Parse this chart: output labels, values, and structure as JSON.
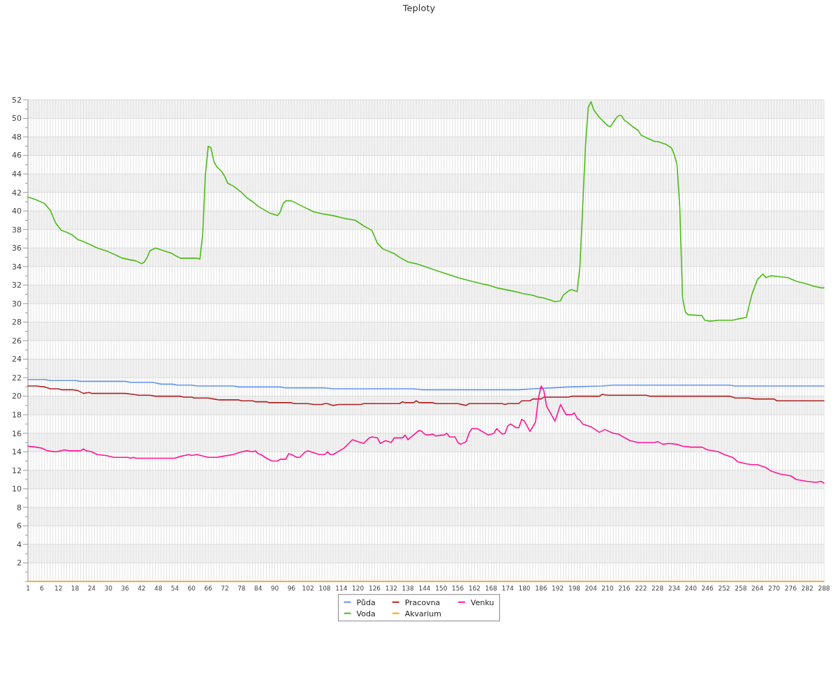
{
  "chart_data": {
    "type": "line",
    "title": "Teploty",
    "legend": "bottom",
    "grid": true,
    "xlim": [
      1,
      288
    ],
    "xticks": [
      1,
      {
        "value": 2,
        "label": null
      },
      {
        "value": 3,
        "label": null
      },
      {
        "value": 4,
        "label": null
      },
      {
        "value": 5,
        "label": null
      },
      6,
      {
        "value": 7,
        "label": null
      },
      {
        "value": 8,
        "label": null
      },
      {
        "value": 9,
        "label": null
      },
      {
        "value": 10,
        "label": null
      },
      {
        "value": 11,
        "label": null
      },
      12,
      {
        "value": 13,
        "label": null
      },
      {
        "value": 14,
        "label": null
      },
      {
        "value": 15,
        "label": null
      },
      {
        "value": 16,
        "label": null
      },
      {
        "value": 17,
        "label": null
      },
      18,
      {
        "value": 19,
        "label": null
      },
      {
        "value": 20,
        "label": null
      },
      {
        "value": 21,
        "label": null
      },
      {
        "value": 22,
        "label": null
      },
      {
        "value": 23,
        "label": null
      },
      24,
      {
        "value": 25,
        "label": null
      },
      {
        "value": 26,
        "label": null
      },
      {
        "value": 27,
        "label": null
      },
      {
        "value": 28,
        "label": null
      },
      {
        "value": 29,
        "label": null
      },
      30,
      {
        "value": 31,
        "label": null
      },
      {
        "value": 32,
        "label": null
      },
      {
        "value": 33,
        "label": null
      },
      {
        "value": 34,
        "label": null
      },
      {
        "value": 35,
        "label": null
      },
      36,
      {
        "value": 37,
        "label": null
      },
      {
        "value": 38,
        "label": null
      },
      {
        "value": 39,
        "label": null
      },
      {
        "value": 40,
        "label": null
      },
      {
        "value": 41,
        "label": null
      },
      42,
      {
        "value": 43,
        "label": null
      },
      {
        "value": 44,
        "label": null
      },
      {
        "value": 45,
        "label": null
      },
      {
        "value": 46,
        "label": null
      },
      {
        "value": 47,
        "label": null
      },
      48,
      {
        "value": 49,
        "label": null
      },
      {
        "value": 50,
        "label": null
      },
      {
        "value": 51,
        "label": null
      },
      {
        "value": 52,
        "label": null
      },
      {
        "value": 53,
        "label": null
      },
      54,
      {
        "value": 55,
        "label": null
      },
      {
        "value": 56,
        "label": null
      },
      {
        "value": 57,
        "label": null
      },
      {
        "value": 58,
        "label": null
      },
      {
        "value": 59,
        "label": null
      },
      60,
      {
        "value": 61,
        "label": null
      },
      {
        "value": 62,
        "label": null
      },
      {
        "value": 63,
        "label": null
      },
      {
        "value": 64,
        "label": null
      },
      {
        "value": 65,
        "label": null
      },
      66,
      {
        "value": 67,
        "label": null
      },
      {
        "value": 68,
        "label": null
      },
      {
        "value": 69,
        "label": null
      },
      {
        "value": 70,
        "label": null
      },
      {
        "value": 71,
        "label": null
      },
      72,
      {
        "value": 73,
        "label": null
      },
      {
        "value": 74,
        "label": null
      },
      {
        "value": 75,
        "label": null
      },
      {
        "value": 76,
        "label": null
      },
      {
        "value": 77,
        "label": null
      },
      78,
      {
        "value": 79,
        "label": null
      },
      {
        "value": 80,
        "label": null
      },
      {
        "value": 81,
        "label": null
      },
      {
        "value": 82,
        "label": null
      },
      {
        "value": 83,
        "label": null
      },
      84,
      {
        "value": 85,
        "label": null
      },
      {
        "value": 86,
        "label": null
      },
      {
        "value": 87,
        "label": null
      },
      {
        "value": 88,
        "label": null
      },
      {
        "value": 89,
        "label": null
      },
      90,
      {
        "value": 91,
        "label": null
      },
      {
        "value": 92,
        "label": null
      },
      {
        "value": 93,
        "label": null
      },
      {
        "value": 94,
        "label": null
      },
      {
        "value": 95,
        "label": null
      },
      96,
      {
        "value": 97,
        "label": null
      },
      {
        "value": 98,
        "label": null
      },
      {
        "value": 99,
        "label": null
      },
      {
        "value": 100,
        "label": null
      },
      {
        "value": 101,
        "label": null
      },
      102,
      {
        "value": 103,
        "label": null
      },
      {
        "value": 104,
        "label": null
      },
      {
        "value": 105,
        "label": null
      },
      {
        "value": 106,
        "label": null
      },
      {
        "value": 107,
        "label": null
      },
      108,
      {
        "value": 109,
        "label": null
      },
      {
        "value": 110,
        "label": null
      },
      {
        "value": 111,
        "label": null
      },
      {
        "value": 112,
        "label": null
      },
      {
        "value": 113,
        "label": null
      },
      114,
      {
        "value": 115,
        "label": null
      },
      {
        "value": 116,
        "label": null
      },
      {
        "value": 117,
        "label": null
      },
      {
        "value": 118,
        "label": null
      },
      {
        "value": 119,
        "label": null
      },
      120,
      {
        "value": 121,
        "label": null
      },
      {
        "value": 122,
        "label": null
      },
      {
        "value": 123,
        "label": null
      },
      {
        "value": 124,
        "label": null
      },
      {
        "value": 125,
        "label": null
      },
      126,
      {
        "value": 127,
        "label": null
      },
      {
        "value": 128,
        "label": null
      },
      {
        "value": 129,
        "label": null
      },
      {
        "value": 130,
        "label": null
      },
      {
        "value": 131,
        "label": null
      },
      132,
      {
        "value": 133,
        "label": null
      },
      {
        "value": 134,
        "label": null
      },
      {
        "value": 135,
        "label": null
      },
      {
        "value": 136,
        "label": null
      },
      {
        "value": 137,
        "label": null
      },
      138,
      {
        "value": 139,
        "label": null
      },
      {
        "value": 140,
        "label": null
      },
      {
        "value": 141,
        "label": null
      },
      {
        "value": 142,
        "label": null
      },
      {
        "value": 143,
        "label": null
      },
      144,
      {
        "value": 145,
        "label": null
      },
      {
        "value": 146,
        "label": null
      },
      {
        "value": 147,
        "label": null
      },
      {
        "value": 148,
        "label": null
      },
      {
        "value": 149,
        "label": null
      },
      150,
      {
        "value": 151,
        "label": null
      },
      {
        "value": 152,
        "label": null
      },
      {
        "value": 153,
        "label": null
      },
      {
        "value": 154,
        "label": null
      },
      {
        "value": 155,
        "label": null
      },
      156,
      {
        "value": 157,
        "label": null
      },
      {
        "value": 158,
        "label": null
      },
      {
        "value": 159,
        "label": null
      },
      {
        "value": 160,
        "label": null
      },
      {
        "value": 161,
        "label": null
      },
      162,
      {
        "value": 163,
        "label": null
      },
      {
        "value": 164,
        "label": null
      },
      {
        "value": 165,
        "label": null
      },
      {
        "value": 166,
        "label": null
      },
      {
        "value": 167,
        "label": null
      },
      168,
      {
        "value": 169,
        "label": null
      },
      {
        "value": 170,
        "label": null
      },
      {
        "value": 171,
        "label": null
      },
      {
        "value": 172,
        "label": null
      },
      {
        "value": 173,
        "label": null
      },
      174,
      {
        "value": 175,
        "label": null
      },
      {
        "value": 176,
        "label": null
      },
      {
        "value": 177,
        "label": null
      },
      {
        "value": 178,
        "label": null
      },
      {
        "value": 179,
        "label": null
      },
      180,
      {
        "value": 181,
        "label": null
      },
      {
        "value": 182,
        "label": null
      },
      {
        "value": 183,
        "label": null
      },
      {
        "value": 184,
        "label": null
      },
      {
        "value": 185,
        "label": null
      },
      186,
      {
        "value": 187,
        "label": null
      },
      {
        "value": 188,
        "label": null
      },
      {
        "value": 189,
        "label": null
      },
      {
        "value": 190,
        "label": null
      },
      {
        "value": 191,
        "label": null
      },
      192,
      {
        "value": 193,
        "label": null
      },
      {
        "value": 194,
        "label": null
      },
      {
        "value": 195,
        "label": null
      },
      {
        "value": 196,
        "label": null
      },
      {
        "value": 197,
        "label": null
      },
      198,
      {
        "value": 199,
        "label": null
      },
      {
        "value": 200,
        "label": null
      },
      {
        "value": 201,
        "label": null
      },
      {
        "value": 202,
        "label": null
      },
      {
        "value": 203,
        "label": null
      },
      204,
      {
        "value": 205,
        "label": null
      },
      {
        "value": 206,
        "label": null
      },
      {
        "value": 207,
        "label": null
      },
      {
        "value": 208,
        "label": null
      },
      {
        "value": 209,
        "label": null
      },
      210,
      {
        "value": 211,
        "label": null
      },
      {
        "value": 212,
        "label": null
      },
      {
        "value": 213,
        "label": null
      },
      {
        "value": 214,
        "label": null
      },
      {
        "value": 215,
        "label": null
      },
      216,
      {
        "value": 217,
        "label": null
      },
      {
        "value": 218,
        "label": null
      },
      {
        "value": 219,
        "label": null
      },
      {
        "value": 220,
        "label": null
      },
      {
        "value": 221,
        "label": null
      },
      222,
      {
        "value": 223,
        "label": null
      },
      {
        "value": 224,
        "label": null
      },
      {
        "value": 225,
        "label": null
      },
      {
        "value": 226,
        "label": null
      },
      {
        "value": 227,
        "label": null
      },
      228,
      {
        "value": 229,
        "label": null
      },
      {
        "value": 230,
        "label": null
      },
      {
        "value": 231,
        "label": null
      },
      {
        "value": 232,
        "label": null
      },
      {
        "value": 233,
        "label": null
      },
      234,
      {
        "value": 235,
        "label": null
      },
      {
        "value": 236,
        "label": null
      },
      {
        "value": 237,
        "label": null
      },
      {
        "value": 238,
        "label": null
      },
      {
        "value": 239,
        "label": null
      },
      240,
      {
        "value": 241,
        "label": null
      },
      {
        "value": 242,
        "label": null
      },
      {
        "value": 243,
        "label": null
      },
      {
        "value": 244,
        "label": null
      },
      {
        "value": 245,
        "label": null
      },
      246,
      {
        "value": 247,
        "label": null
      },
      {
        "value": 248,
        "label": null
      },
      {
        "value": 249,
        "label": null
      },
      {
        "value": 250,
        "label": null
      },
      {
        "value": 251,
        "label": null
      },
      252,
      {
        "value": 253,
        "label": null
      },
      {
        "value": 254,
        "label": null
      },
      {
        "value": 255,
        "label": null
      },
      {
        "value": 256,
        "label": null
      },
      {
        "value": 257,
        "label": null
      },
      258,
      {
        "value": 259,
        "label": null
      },
      {
        "value": 260,
        "label": null
      },
      {
        "value": 261,
        "label": null
      },
      {
        "value": 262,
        "label": null
      },
      {
        "value": 263,
        "label": null
      },
      264,
      {
        "value": 265,
        "label": null
      },
      {
        "value": 266,
        "label": null
      },
      {
        "value": 267,
        "label": null
      },
      {
        "value": 268,
        "label": null
      },
      {
        "value": 269,
        "label": null
      },
      270,
      {
        "value": 271,
        "label": null
      },
      {
        "value": 272,
        "label": null
      },
      {
        "value": 273,
        "label": null
      },
      {
        "value": 274,
        "label": null
      },
      {
        "value": 275,
        "label": null
      },
      276,
      {
        "value": 277,
        "label": null
      },
      {
        "value": 278,
        "label": null
      },
      {
        "value": 279,
        "label": null
      },
      {
        "value": 280,
        "label": null
      },
      {
        "value": 281,
        "label": null
      },
      282,
      {
        "value": 283,
        "label": null
      },
      {
        "value": 284,
        "label": null
      },
      {
        "value": 285,
        "label": null
      },
      {
        "value": 286,
        "label": null
      },
      {
        "value": 287,
        "label": null
      },
      288
    ],
    "ylim": [
      0,
      52
    ],
    "yticks": [
      {
        "value": 0,
        "label": null
      },
      {
        "value": 1,
        "label": null
      },
      2,
      {
        "value": 3,
        "label": null
      },
      4,
      {
        "value": 5,
        "label": null
      },
      6,
      {
        "value": 7,
        "label": null
      },
      8,
      {
        "value": 9,
        "label": null
      },
      10,
      {
        "value": 11,
        "label": null
      },
      12,
      {
        "value": 13,
        "label": null
      },
      14,
      {
        "value": 15,
        "label": null
      },
      16,
      {
        "value": 17,
        "label": null
      },
      18,
      {
        "value": 19,
        "label": null
      },
      20,
      {
        "value": 21,
        "label": null
      },
      22,
      {
        "value": 23,
        "label": null
      },
      24,
      {
        "value": 25,
        "label": null
      },
      26,
      {
        "value": 27,
        "label": null
      },
      28,
      {
        "value": 29,
        "label": null
      },
      30,
      {
        "value": 31,
        "label": null
      },
      32,
      {
        "value": 33,
        "label": null
      },
      34,
      {
        "value": 35,
        "label": null
      },
      36,
      {
        "value": 37,
        "label": null
      },
      38,
      {
        "value": 39,
        "label": null
      },
      40,
      {
        "value": 41,
        "label": null
      },
      42,
      {
        "value": 43,
        "label": null
      },
      44,
      {
        "value": 45,
        "label": null
      },
      46,
      {
        "value": 47,
        "label": null
      },
      48,
      {
        "value": 49,
        "label": null
      },
      50,
      {
        "value": 51,
        "label": null
      },
      52
    ],
    "series": [
      {
        "name": "Půda",
        "color": "#6495ed",
        "x": [
          1,
          7,
          9,
          18,
          20,
          36,
          38,
          46,
          49,
          53,
          55,
          60,
          62,
          75,
          77,
          92,
          94,
          108,
          111,
          140,
          143,
          178,
          183,
          190,
          196,
          208,
          212,
          254,
          256,
          288
        ],
        "values": [
          21.8,
          21.8,
          21.7,
          21.7,
          21.6,
          21.6,
          21.5,
          21.5,
          21.3,
          21.3,
          21.2,
          21.2,
          21.1,
          21.1,
          21.0,
          21.0,
          20.9,
          20.9,
          20.8,
          20.8,
          20.7,
          20.7,
          20.8,
          20.9,
          21.0,
          21.1,
          21.2,
          21.2,
          21.1,
          21.1
        ]
      },
      {
        "name": "Voda",
        "color": "#4cbb17",
        "x": [
          1,
          4,
          7,
          9,
          11,
          13,
          15,
          17,
          19,
          21,
          26,
          30,
          33,
          35,
          40,
          42,
          43,
          44,
          45,
          47,
          50,
          53,
          54,
          56,
          62,
          63,
          64,
          65,
          66,
          67,
          68,
          69,
          71,
          72,
          73,
          75,
          78,
          80,
          82,
          84,
          88,
          91,
          92,
          93,
          94,
          96,
          100,
          104,
          107,
          111,
          115,
          119,
          122,
          125,
          127,
          129,
          133,
          135,
          138,
          141,
          144,
          148,
          151,
          154,
          156,
          161,
          165,
          167,
          170,
          175,
          178,
          179,
          183,
          185,
          187,
          189,
          191,
          193,
          194,
          196,
          197,
          199,
          200,
          201,
          202,
          203,
          204,
          205,
          207,
          210,
          211,
          213,
          214,
          215,
          216,
          217,
          219,
          221,
          222,
          224,
          227,
          228,
          231,
          233,
          234,
          235,
          236,
          237,
          238,
          239,
          244,
          245,
          247,
          250,
          255,
          258,
          260,
          261,
          262,
          264,
          266,
          267,
          269,
          272,
          275,
          278,
          282,
          284,
          287,
          288
        ],
        "values": [
          41.5,
          41.2,
          40.8,
          40.1,
          38.7,
          37.9,
          37.7,
          37.4,
          36.9,
          36.7,
          36.0,
          35.6,
          35.2,
          34.9,
          34.6,
          34.3,
          34.5,
          35.0,
          35.7,
          36.0,
          35.7,
          35.4,
          35.2,
          34.9,
          34.9,
          34.8,
          37.5,
          44.0,
          47.0,
          46.8,
          45.4,
          44.8,
          44.2,
          43.7,
          43.0,
          42.7,
          42.0,
          41.4,
          41.0,
          40.5,
          39.8,
          39.5,
          39.9,
          40.8,
          41.1,
          41.1,
          40.5,
          39.9,
          39.7,
          39.5,
          39.2,
          39.0,
          38.4,
          37.9,
          36.5,
          35.9,
          35.4,
          35.0,
          34.5,
          34.3,
          34.0,
          33.6,
          33.3,
          33.0,
          32.8,
          32.4,
          32.1,
          32.0,
          31.7,
          31.4,
          31.2,
          31.1,
          30.9,
          30.7,
          30.6,
          30.4,
          30.2,
          30.3,
          30.9,
          31.4,
          31.5,
          31.3,
          34.0,
          40.5,
          47.0,
          51.2,
          51.8,
          50.9,
          50.1,
          49.2,
          49.1,
          50.0,
          50.3,
          50.3,
          49.8,
          49.6,
          49.1,
          48.7,
          48.2,
          47.9,
          47.5,
          47.5,
          47.2,
          46.8,
          46.1,
          45.0,
          40.4,
          30.6,
          29.1,
          28.8,
          28.7,
          28.2,
          28.1,
          28.2,
          28.2,
          28.4,
          28.5,
          29.8,
          31.0,
          32.6,
          33.2,
          32.8,
          33.0,
          32.9,
          32.8,
          32.4,
          32.1,
          31.9,
          31.7,
          31.7
        ]
      },
      {
        "name": "Pracovna",
        "color": "#b22222",
        "x": [
          1,
          4,
          7,
          9,
          12,
          13,
          17,
          19,
          21,
          23,
          24,
          36,
          39,
          41,
          45,
          47,
          56,
          57,
          60,
          61,
          66,
          68,
          70,
          77,
          78,
          82,
          83,
          87,
          88,
          96,
          97,
          102,
          104,
          107,
          108,
          109,
          111,
          113,
          121,
          122,
          135,
          136,
          137,
          140,
          141,
          142,
          147,
          148,
          156,
          159,
          160,
          172,
          173,
          174,
          178,
          179,
          182,
          183,
          186,
          187,
          196,
          197,
          207,
          208,
          210,
          224,
          225,
          254,
          256,
          261,
          263,
          270,
          271,
          288
        ],
        "values": [
          21.1,
          21.1,
          21.0,
          20.8,
          20.8,
          20.7,
          20.7,
          20.6,
          20.3,
          20.4,
          20.3,
          20.3,
          20.2,
          20.1,
          20.1,
          20.0,
          20.0,
          19.9,
          19.9,
          19.8,
          19.8,
          19.7,
          19.6,
          19.6,
          19.5,
          19.5,
          19.4,
          19.4,
          19.3,
          19.3,
          19.2,
          19.2,
          19.1,
          19.1,
          19.2,
          19.2,
          19.0,
          19.1,
          19.1,
          19.2,
          19.2,
          19.4,
          19.3,
          19.3,
          19.5,
          19.3,
          19.3,
          19.2,
          19.2,
          19.0,
          19.2,
          19.2,
          19.1,
          19.2,
          19.2,
          19.5,
          19.5,
          19.7,
          19.7,
          19.9,
          19.9,
          20.0,
          20.0,
          20.2,
          20.1,
          20.1,
          20.0,
          20.0,
          19.8,
          19.8,
          19.7,
          19.7,
          19.5,
          19.5
        ]
      },
      {
        "name": "Akvarium",
        "color": "#ffa500",
        "x": [
          1,
          288
        ],
        "values": [
          0,
          0
        ]
      },
      {
        "name": "Venku",
        "color": "#ff1493",
        "x": [
          1,
          4,
          6,
          8,
          11,
          13,
          14,
          16,
          20,
          21,
          22,
          24,
          26,
          29,
          32,
          37,
          38,
          39,
          40,
          54,
          56,
          59,
          60,
          62,
          66,
          69,
          71,
          75,
          76,
          78,
          80,
          82,
          83,
          84,
          85,
          87,
          89,
          91,
          92,
          94,
          95,
          96,
          98,
          99,
          101,
          102,
          104,
          106,
          108,
          109,
          110,
          111,
          115,
          117,
          118,
          120,
          122,
          124,
          125,
          127,
          128,
          130,
          131,
          132,
          133,
          136,
          137,
          138,
          142,
          143,
          144,
          145,
          147,
          148,
          150,
          151,
          152,
          153,
          155,
          156,
          157,
          159,
          160,
          161,
          163,
          167,
          169,
          170,
          172,
          173,
          174,
          175,
          177,
          178,
          179,
          180,
          182,
          184,
          185,
          186,
          187,
          188,
          191,
          193,
          195,
          197,
          198,
          199,
          200,
          201,
          204,
          205,
          207,
          209,
          212,
          214,
          215,
          218,
          221,
          224,
          227,
          228,
          230,
          232,
          235,
          237,
          240,
          244,
          246,
          250,
          252,
          255,
          257,
          260,
          262,
          264,
          267,
          269,
          272,
          276,
          278,
          282,
          285,
          287,
          288
        ],
        "values": [
          14.6,
          14.5,
          14.4,
          14.1,
          14.0,
          14.1,
          14.2,
          14.1,
          14.1,
          14.3,
          14.1,
          14.0,
          13.7,
          13.6,
          13.4,
          13.4,
          13.3,
          13.4,
          13.3,
          13.3,
          13.5,
          13.7,
          13.6,
          13.7,
          13.4,
          13.4,
          13.5,
          13.7,
          13.8,
          14.0,
          14.1,
          14.0,
          14.1,
          13.8,
          13.7,
          13.3,
          13.0,
          13.0,
          13.2,
          13.2,
          13.8,
          13.7,
          13.4,
          13.4,
          14.0,
          14.1,
          13.9,
          13.7,
          13.7,
          14.0,
          13.7,
          13.7,
          14.4,
          15.0,
          15.3,
          15.1,
          14.9,
          15.5,
          15.6,
          15.5,
          14.9,
          15.2,
          15.1,
          15.0,
          15.5,
          15.5,
          15.8,
          15.3,
          16.3,
          16.2,
          15.9,
          15.8,
          15.9,
          15.7,
          15.8,
          15.8,
          16.0,
          15.6,
          15.6,
          15.0,
          14.8,
          15.1,
          16.0,
          16.5,
          16.5,
          15.8,
          16.0,
          16.5,
          15.9,
          16.0,
          16.8,
          17.0,
          16.6,
          16.6,
          17.5,
          17.3,
          16.2,
          17.2,
          19.7,
          21.1,
          20.6,
          18.9,
          17.3,
          19.1,
          18.0,
          18.0,
          18.2,
          17.6,
          17.4,
          17.0,
          16.7,
          16.5,
          16.1,
          16.4,
          16.0,
          15.9,
          15.7,
          15.2,
          15.0,
          15.0,
          15.0,
          15.1,
          14.8,
          14.9,
          14.8,
          14.6,
          14.5,
          14.5,
          14.2,
          14.0,
          13.7,
          13.4,
          12.9,
          12.7,
          12.6,
          12.6,
          12.3,
          11.9,
          11.6,
          11.4,
          11.0,
          10.8,
          10.7,
          10.8,
          10.6
        ]
      }
    ]
  }
}
